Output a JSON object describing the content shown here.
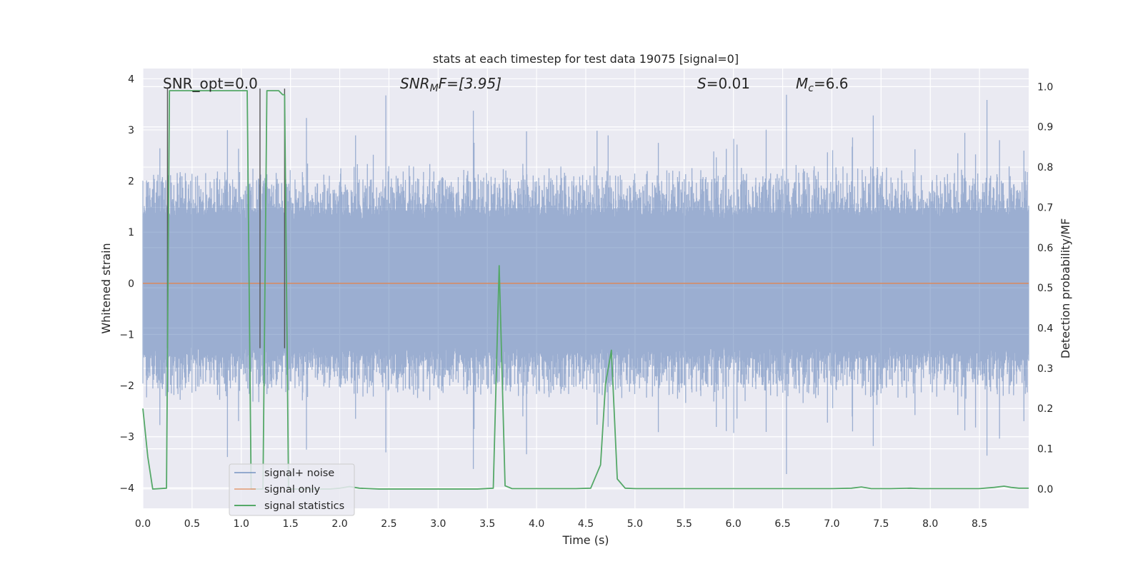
{
  "chart_data": {
    "type": "line",
    "title": "stats at each timestep for test data 19075 [signal=0]",
    "xlabel": "Time (s)",
    "ylabel_left": "Whitened strain",
    "ylabel_right": "Detection probability/MF",
    "xlim": [
      0.0,
      9.0
    ],
    "ylim_left": [
      -4.4,
      4.2
    ],
    "ylim_right": [
      -0.048,
      1.045
    ],
    "xticks": [
      0.0,
      0.5,
      1.0,
      1.5,
      2.0,
      2.5,
      3.0,
      3.5,
      4.0,
      4.5,
      5.0,
      5.5,
      6.0,
      6.5,
      7.0,
      7.5,
      8.0,
      8.5
    ],
    "xtick_labels": [
      "0.0",
      "0.5",
      "1.0",
      "1.5",
      "2.0",
      "2.5",
      "3.0",
      "3.5",
      "4.0",
      "4.5",
      "5.0",
      "5.5",
      "6.0",
      "6.5",
      "7.0",
      "7.5",
      "8.0",
      "8.5"
    ],
    "yticks_left": [
      4,
      3,
      2,
      1,
      0,
      -1,
      -2,
      -3,
      -4
    ],
    "ytick_labels_left": [
      "4",
      "3",
      "2",
      "1",
      "0",
      "−1",
      "−2",
      "−3",
      "−4"
    ],
    "yticks_right": [
      1.0,
      0.9,
      0.8,
      0.7,
      0.6,
      0.5,
      0.4,
      0.3,
      0.2,
      0.1,
      0.0
    ],
    "ytick_labels_right": [
      "1.0",
      "0.9",
      "0.8",
      "0.7",
      "0.6",
      "0.5",
      "0.4",
      "0.3",
      "0.2",
      "0.1",
      "0.0"
    ],
    "grid": true,
    "annotations": {
      "snr_opt": "SNR_opt=0.0",
      "snr_mf_sym": "SNR",
      "snr_mf_sub": "M",
      "snr_mf_rest": "F=[3.95]",
      "s_sym": "S",
      "s_rest": "=0.01",
      "mc_sym": "M",
      "mc_sub": "c",
      "mc_rest": "=6.6"
    },
    "legend": {
      "location": "lower left",
      "entries": [
        "signal+ noise",
        "signal only",
        "signal statistics"
      ]
    },
    "series": [
      {
        "name": "signal+ noise",
        "axis": "left",
        "color": "#4c72b0",
        "kind": "noise",
        "approx_range": [
          -4.0,
          3.9
        ],
        "typical_abs_peak": 2.3
      },
      {
        "name": "signal only",
        "axis": "left",
        "color": "#dd8452",
        "x": [
          0.0,
          9.0
        ],
        "y": [
          0.0,
          0.0
        ]
      },
      {
        "name": "signal statistics",
        "axis": "right",
        "color": "#55a868",
        "x": [
          0.0,
          0.05,
          0.1,
          0.24,
          0.27,
          0.3,
          0.35,
          0.45,
          0.55,
          0.65,
          0.75,
          0.85,
          0.95,
          1.0,
          1.06,
          1.1,
          1.14,
          1.18,
          1.22,
          1.26,
          1.3,
          1.34,
          1.38,
          1.42,
          1.44,
          1.48,
          1.52,
          1.56,
          1.62,
          1.7,
          1.8,
          1.9,
          2.0,
          2.1,
          2.2,
          2.3,
          2.4,
          2.6,
          2.8,
          3.0,
          3.2,
          3.4,
          3.56,
          3.62,
          3.68,
          3.75,
          3.85,
          4.0,
          4.2,
          4.4,
          4.55,
          4.65,
          4.7,
          4.76,
          4.82,
          4.9,
          5.0,
          5.2,
          5.5,
          6.0,
          6.5,
          7.0,
          7.2,
          7.3,
          7.4,
          7.6,
          7.8,
          7.9,
          8.2,
          8.5,
          8.65,
          8.75,
          8.82,
          8.9,
          9.0
        ],
        "y": [
          0.2,
          0.08,
          0.0,
          0.002,
          0.99,
          0.99,
          0.99,
          0.99,
          0.99,
          0.99,
          0.99,
          0.99,
          0.99,
          0.99,
          0.99,
          0.0,
          0.0,
          0.0,
          0.0,
          0.99,
          0.99,
          0.99,
          0.99,
          0.98,
          0.98,
          0.0,
          0.0,
          0.0,
          0.0,
          0.0,
          0.0,
          0.0,
          0.002,
          0.006,
          0.002,
          0.001,
          0.0,
          0.0,
          0.0,
          0.0,
          0.0,
          0.0,
          0.002,
          0.555,
          0.008,
          0.001,
          0.001,
          0.001,
          0.001,
          0.001,
          0.002,
          0.06,
          0.26,
          0.345,
          0.025,
          0.002,
          0.001,
          0.001,
          0.001,
          0.001,
          0.001,
          0.001,
          0.002,
          0.005,
          0.001,
          0.001,
          0.002,
          0.001,
          0.001,
          0.001,
          0.004,
          0.007,
          0.004,
          0.002,
          0.002
        ]
      }
    ],
    "vertical_markers": [
      {
        "x": 0.25,
        "color": "#555555"
      },
      {
        "x": 1.19,
        "color": "#555555"
      },
      {
        "x": 1.44,
        "color": "#555555"
      }
    ]
  }
}
